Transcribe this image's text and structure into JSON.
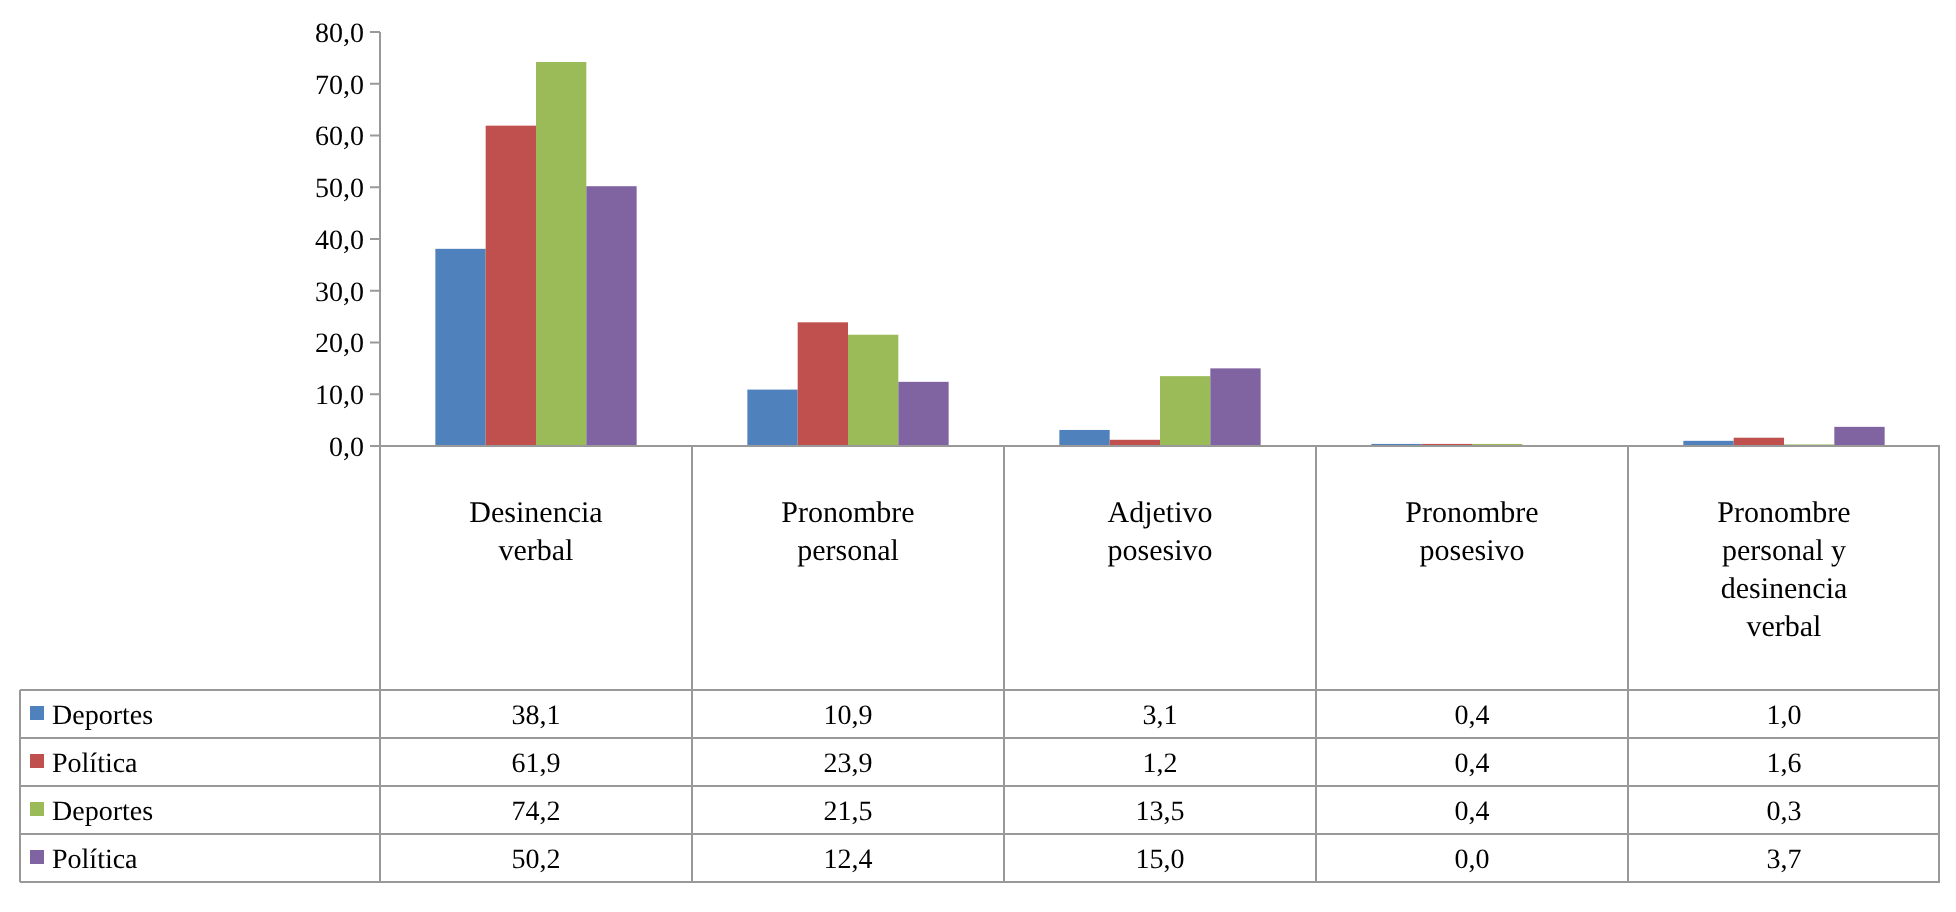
{
  "chart_data": {
    "type": "bar",
    "categories": [
      "Desinencia verbal",
      "Pronombre personal",
      "Adjetivo posesivo",
      "Pronombre posesivo",
      "Pronombre personal y desinencia verbal"
    ],
    "series": [
      {
        "name": "Deportes",
        "color": "#4f81bd",
        "values": [
          38.1,
          10.9,
          3.1,
          0.4,
          1.0
        ],
        "value_labels": [
          "38,1",
          "10,9",
          "3,1",
          "0,4",
          "1,0"
        ]
      },
      {
        "name": "Política",
        "color": "#c0504d",
        "values": [
          61.9,
          23.9,
          1.2,
          0.4,
          1.6
        ],
        "value_labels": [
          "61,9",
          "23,9",
          "1,2",
          "0,4",
          "1,6"
        ]
      },
      {
        "name": "Deportes",
        "color": "#9bbb59",
        "values": [
          74.2,
          21.5,
          13.5,
          0.4,
          0.3
        ],
        "value_labels": [
          "74,2",
          "21,5",
          "13,5",
          "0,4",
          "0,3"
        ]
      },
      {
        "name": "Política",
        "color": "#8064a2",
        "values": [
          50.2,
          12.4,
          15.0,
          0.0,
          3.7
        ],
        "value_labels": [
          "50,2",
          "12,4",
          "15,0",
          "0,0",
          "3,7"
        ]
      }
    ],
    "ylim": [
      0,
      80
    ],
    "yticks": [
      {
        "value": 0,
        "label": "0,0"
      },
      {
        "value": 10,
        "label": "10,0"
      },
      {
        "value": 20,
        "label": "20,0"
      },
      {
        "value": 30,
        "label": "30,0"
      },
      {
        "value": 40,
        "label": "40,0"
      },
      {
        "value": 50,
        "label": "50,0"
      },
      {
        "value": 60,
        "label": "60,0"
      },
      {
        "value": 70,
        "label": "70,0"
      },
      {
        "value": 80,
        "label": "80,0"
      }
    ],
    "grid": false,
    "legend": "bottom left"
  }
}
